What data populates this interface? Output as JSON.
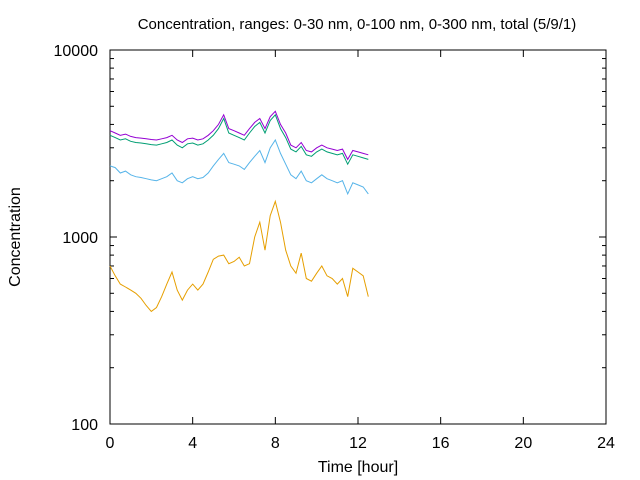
{
  "chart_data": {
    "type": "line",
    "title": "Concentration, ranges: 0-30 nm, 0-100 nm, 0-300 nm, total (5/9/1)",
    "xlabel": "Time [hour]",
    "ylabel": "Concentration",
    "xlim": [
      0,
      24
    ],
    "ylim": [
      100,
      10000
    ],
    "yscale": "log",
    "grid": false,
    "x_ticks": [
      0,
      4,
      8,
      12,
      16,
      20,
      24
    ],
    "x_tick_labels": [
      "0",
      "4",
      "8",
      "12",
      "16",
      "20",
      "24"
    ],
    "y_ticks": [
      100,
      1000,
      10000
    ],
    "y_tick_labels": [
      "100",
      "1000",
      "10000"
    ],
    "x": [
      0.0,
      0.25,
      0.5,
      0.75,
      1.0,
      1.25,
      1.5,
      1.75,
      2.0,
      2.25,
      2.5,
      2.75,
      3.0,
      3.25,
      3.5,
      3.75,
      4.0,
      4.25,
      4.5,
      4.75,
      5.0,
      5.25,
      5.5,
      5.75,
      6.0,
      6.25,
      6.5,
      6.75,
      7.0,
      7.25,
      7.5,
      7.75,
      8.0,
      8.25,
      8.5,
      8.75,
      9.0,
      9.25,
      9.5,
      9.75,
      10.0,
      10.25,
      10.5,
      10.75,
      11.0,
      11.25,
      11.5,
      11.75,
      12.0,
      12.25,
      12.5
    ],
    "series": [
      {
        "key": "total",
        "color": "#9400d3",
        "values": [
          3700,
          3600,
          3500,
          3550,
          3450,
          3400,
          3380,
          3350,
          3320,
          3300,
          3350,
          3400,
          3500,
          3300,
          3200,
          3350,
          3380,
          3300,
          3350,
          3500,
          3700,
          4000,
          4500,
          3800,
          3700,
          3600,
          3500,
          3800,
          4100,
          4300,
          3800,
          4400,
          4700,
          4000,
          3600,
          3100,
          3000,
          3200,
          2900,
          2850,
          3000,
          3100,
          3000,
          2950,
          2900,
          2950,
          2600,
          2900,
          2850,
          2800,
          2750
        ]
      },
      {
        "key": "0-300 nm",
        "color": "#009e73",
        "values": [
          3500,
          3400,
          3300,
          3350,
          3250,
          3200,
          3180,
          3150,
          3120,
          3100,
          3150,
          3200,
          3300,
          3100,
          3000,
          3150,
          3180,
          3100,
          3150,
          3300,
          3500,
          3800,
          4300,
          3600,
          3500,
          3400,
          3300,
          3600,
          3900,
          4100,
          3600,
          4200,
          4500,
          3800,
          3400,
          2950,
          2850,
          3050,
          2750,
          2700,
          2850,
          2950,
          2850,
          2800,
          2750,
          2800,
          2450,
          2750,
          2700,
          2650,
          2600
        ]
      },
      {
        "key": "0-100 nm",
        "color": "#56b4e9",
        "values": [
          2400,
          2350,
          2200,
          2250,
          2150,
          2100,
          2080,
          2050,
          2020,
          2000,
          2050,
          2100,
          2200,
          2000,
          1950,
          2050,
          2100,
          2050,
          2080,
          2200,
          2400,
          2600,
          2800,
          2500,
          2450,
          2400,
          2300,
          2500,
          2700,
          2900,
          2500,
          3000,
          3300,
          2800,
          2450,
          2150,
          2050,
          2250,
          2000,
          1950,
          2050,
          2150,
          2050,
          2000,
          1950,
          2000,
          1700,
          1950,
          1900,
          1850,
          1700
        ]
      },
      {
        "key": "0-30 nm",
        "color": "#e69f00",
        "values": [
          700,
          620,
          560,
          540,
          520,
          500,
          470,
          430,
          400,
          420,
          480,
          560,
          650,
          520,
          460,
          520,
          560,
          520,
          560,
          650,
          760,
          790,
          800,
          720,
          740,
          780,
          700,
          720,
          1000,
          1200,
          850,
          1300,
          1550,
          1200,
          850,
          700,
          640,
          820,
          600,
          580,
          640,
          700,
          620,
          600,
          560,
          600,
          480,
          680,
          650,
          620,
          480
        ]
      }
    ]
  }
}
